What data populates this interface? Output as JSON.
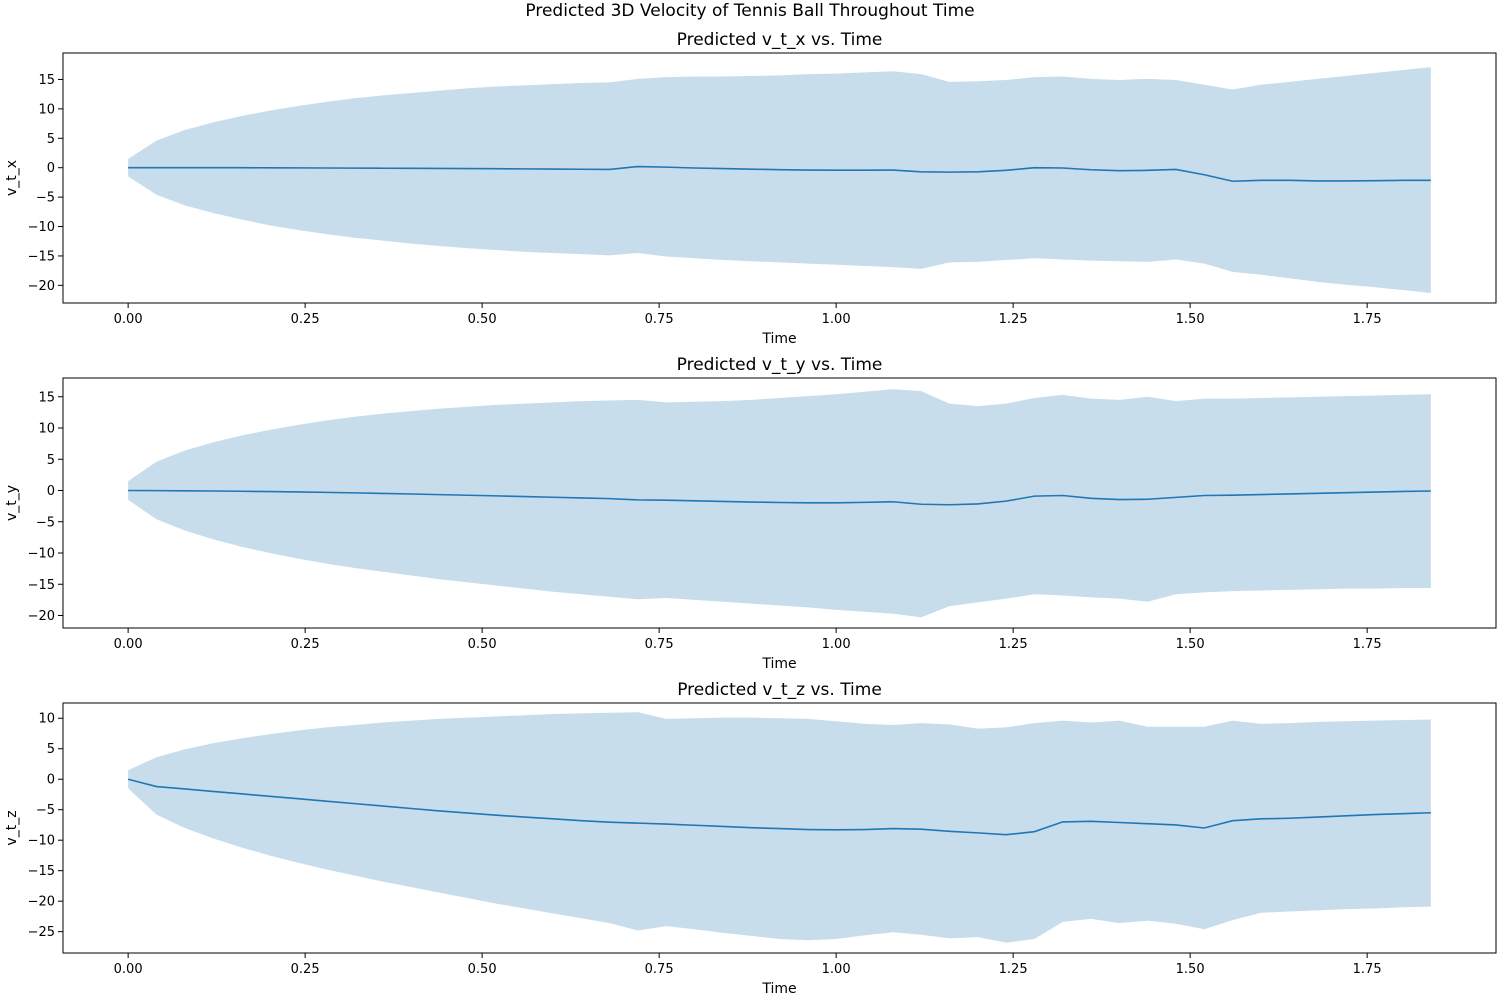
{
  "figure": {
    "suptitle": "Predicted 3D Velocity of Tennis Ball Throughout Time"
  },
  "colors": {
    "line": "#1f77b4",
    "band": "#1f77b4",
    "band_opacity": 0.25
  },
  "chart_data": [
    {
      "type": "area",
      "title": "Predicted v_t_x vs. Time",
      "xlabel": "Time",
      "ylabel": "v_t_x",
      "xlim": [
        -0.092,
        1.932
      ],
      "ylim": [
        -23.0,
        19.5
      ],
      "xticks": [
        0.0,
        0.25,
        0.5,
        0.75,
        1.0,
        1.25,
        1.5,
        1.75
      ],
      "xtick_labels": [
        "0.00",
        "0.25",
        "0.50",
        "0.75",
        "1.00",
        "1.25",
        "1.50",
        "1.75"
      ],
      "yticks": [
        15,
        10,
        5,
        0,
        -5,
        -10,
        -15,
        -20
      ],
      "ytick_labels": [
        "15",
        "10",
        "5",
        "0",
        "−5",
        "−10",
        "−15",
        "−20"
      ],
      "series": [
        {
          "x": [
            0.0,
            0.04,
            0.08,
            0.12,
            0.16,
            0.2,
            0.24,
            0.28,
            0.32,
            0.36,
            0.4,
            0.44,
            0.48,
            0.52,
            0.56,
            0.6,
            0.64,
            0.68,
            0.72,
            0.76,
            0.8,
            0.84,
            0.88,
            0.92,
            0.96,
            1.0,
            1.04,
            1.08,
            1.12,
            1.16,
            1.2,
            1.24,
            1.28,
            1.32,
            1.36,
            1.4,
            1.44,
            1.48,
            1.52,
            1.56,
            1.6,
            1.64,
            1.68,
            1.72,
            1.76,
            1.8,
            1.84
          ],
          "y": [
            0.0,
            0.0,
            0.0,
            0.0,
            0.0,
            -0.02,
            -0.03,
            -0.05,
            -0.07,
            -0.09,
            -0.11,
            -0.13,
            -0.15,
            -0.17,
            -0.2,
            -0.23,
            -0.26,
            -0.3,
            0.2,
            0.1,
            -0.05,
            -0.15,
            -0.25,
            -0.33,
            -0.4,
            -0.42,
            -0.42,
            -0.4,
            -0.7,
            -0.75,
            -0.7,
            -0.45,
            0.0,
            -0.05,
            -0.35,
            -0.5,
            -0.45,
            -0.3,
            -1.2,
            -2.3,
            -2.15,
            -2.15,
            -2.25,
            -2.25,
            -2.2,
            -2.15,
            -2.15
          ],
          "lower": [
            -1.5,
            -4.6,
            -6.4,
            -7.7,
            -8.8,
            -9.8,
            -10.6,
            -11.3,
            -11.9,
            -12.4,
            -12.9,
            -13.3,
            -13.7,
            -14.0,
            -14.3,
            -14.5,
            -14.7,
            -14.9,
            -14.5,
            -15.1,
            -15.4,
            -15.7,
            -15.9,
            -16.1,
            -16.3,
            -16.5,
            -16.7,
            -16.9,
            -17.2,
            -16.1,
            -16.0,
            -15.7,
            -15.4,
            -15.6,
            -15.8,
            -15.9,
            -16.0,
            -15.6,
            -16.3,
            -17.7,
            -18.2,
            -18.8,
            -19.4,
            -19.9,
            -20.3,
            -20.8,
            -21.3
          ],
          "upper": [
            1.5,
            4.6,
            6.4,
            7.7,
            8.8,
            9.7,
            10.5,
            11.2,
            11.8,
            12.3,
            12.7,
            13.1,
            13.5,
            13.8,
            14.0,
            14.2,
            14.4,
            14.5,
            15.1,
            15.4,
            15.5,
            15.5,
            15.6,
            15.7,
            15.9,
            16.0,
            16.2,
            16.4,
            15.9,
            14.6,
            14.7,
            14.9,
            15.4,
            15.5,
            15.1,
            14.9,
            15.1,
            14.9,
            14.1,
            13.3,
            14.1,
            14.6,
            15.1,
            15.6,
            16.1,
            16.6,
            17.1
          ]
        }
      ]
    },
    {
      "type": "area",
      "title": "Predicted v_t_y vs. Time",
      "xlabel": "Time",
      "ylabel": "v_t_y",
      "xlim": [
        -0.092,
        1.932
      ],
      "ylim": [
        -22.0,
        18.0
      ],
      "xticks": [
        0.0,
        0.25,
        0.5,
        0.75,
        1.0,
        1.25,
        1.5,
        1.75
      ],
      "xtick_labels": [
        "0.00",
        "0.25",
        "0.50",
        "0.75",
        "1.00",
        "1.25",
        "1.50",
        "1.75"
      ],
      "yticks": [
        15,
        10,
        5,
        0,
        -5,
        -10,
        -15,
        -20
      ],
      "ytick_labels": [
        "15",
        "10",
        "5",
        "0",
        "−5",
        "−10",
        "−15",
        "−20"
      ],
      "series": [
        {
          "x": [
            0.0,
            0.04,
            0.08,
            0.12,
            0.16,
            0.2,
            0.24,
            0.28,
            0.32,
            0.36,
            0.4,
            0.44,
            0.48,
            0.52,
            0.56,
            0.6,
            0.64,
            0.68,
            0.72,
            0.76,
            0.8,
            0.84,
            0.88,
            0.92,
            0.96,
            1.0,
            1.04,
            1.08,
            1.12,
            1.16,
            1.2,
            1.24,
            1.28,
            1.32,
            1.36,
            1.4,
            1.44,
            1.48,
            1.52,
            1.56,
            1.6,
            1.64,
            1.68,
            1.72,
            1.76,
            1.8,
            1.84
          ],
          "y": [
            0.0,
            -0.02,
            -0.05,
            -0.08,
            -0.12,
            -0.17,
            -0.23,
            -0.3,
            -0.38,
            -0.47,
            -0.56,
            -0.66,
            -0.76,
            -0.86,
            -0.97,
            -1.08,
            -1.19,
            -1.3,
            -1.5,
            -1.55,
            -1.65,
            -1.75,
            -1.85,
            -1.92,
            -1.97,
            -1.97,
            -1.9,
            -1.8,
            -2.2,
            -2.28,
            -2.15,
            -1.7,
            -0.9,
            -0.8,
            -1.25,
            -1.45,
            -1.4,
            -1.1,
            -0.8,
            -0.75,
            -0.65,
            -0.55,
            -0.45,
            -0.35,
            -0.25,
            -0.15,
            -0.08
          ],
          "lower": [
            -1.5,
            -4.6,
            -6.4,
            -7.8,
            -9.0,
            -10.0,
            -10.9,
            -11.7,
            -12.4,
            -13.0,
            -13.6,
            -14.2,
            -14.7,
            -15.2,
            -15.7,
            -16.2,
            -16.6,
            -17.0,
            -17.4,
            -17.2,
            -17.5,
            -17.8,
            -18.1,
            -18.4,
            -18.7,
            -19.1,
            -19.4,
            -19.7,
            -20.3,
            -18.5,
            -17.9,
            -17.3,
            -16.6,
            -16.8,
            -17.1,
            -17.3,
            -17.8,
            -16.6,
            -16.3,
            -16.1,
            -16.0,
            -15.9,
            -15.8,
            -15.7,
            -15.7,
            -15.6,
            -15.6
          ],
          "upper": [
            1.5,
            4.6,
            6.4,
            7.7,
            8.8,
            9.7,
            10.5,
            11.2,
            11.8,
            12.3,
            12.7,
            13.1,
            13.4,
            13.7,
            13.9,
            14.1,
            14.3,
            14.4,
            14.5,
            14.1,
            14.2,
            14.3,
            14.5,
            14.8,
            15.1,
            15.4,
            15.8,
            16.2,
            15.9,
            13.9,
            13.5,
            13.9,
            14.8,
            15.3,
            14.7,
            14.5,
            15.0,
            14.3,
            14.7,
            14.7,
            14.8,
            14.9,
            15.0,
            15.1,
            15.2,
            15.3,
            15.4
          ]
        }
      ]
    },
    {
      "type": "area",
      "title": "Predicted v_t_z vs. Time",
      "xlabel": "Time",
      "ylabel": "v_t_z",
      "xlim": [
        -0.092,
        1.932
      ],
      "ylim": [
        -28.5,
        12.5
      ],
      "xticks": [
        0.0,
        0.25,
        0.5,
        0.75,
        1.0,
        1.25,
        1.5,
        1.75
      ],
      "xtick_labels": [
        "0.00",
        "0.25",
        "0.50",
        "0.75",
        "1.00",
        "1.25",
        "1.50",
        "1.75"
      ],
      "yticks": [
        10,
        5,
        0,
        -5,
        -10,
        -15,
        -20,
        -25
      ],
      "ytick_labels": [
        "10",
        "5",
        "0",
        "−5",
        "−10",
        "−15",
        "−20",
        "−25"
      ],
      "series": [
        {
          "x": [
            0.0,
            0.04,
            0.08,
            0.12,
            0.16,
            0.2,
            0.24,
            0.28,
            0.32,
            0.36,
            0.4,
            0.44,
            0.48,
            0.52,
            0.56,
            0.6,
            0.64,
            0.68,
            0.72,
            0.76,
            0.8,
            0.84,
            0.88,
            0.92,
            0.96,
            1.0,
            1.04,
            1.08,
            1.12,
            1.16,
            1.2,
            1.24,
            1.28,
            1.32,
            1.36,
            1.4,
            1.44,
            1.48,
            1.52,
            1.56,
            1.6,
            1.64,
            1.68,
            1.72,
            1.76,
            1.8,
            1.84
          ],
          "y": [
            0.0,
            -1.2,
            -1.6,
            -2.0,
            -2.4,
            -2.8,
            -3.2,
            -3.6,
            -4.0,
            -4.4,
            -4.8,
            -5.2,
            -5.55,
            -5.9,
            -6.2,
            -6.5,
            -6.8,
            -7.05,
            -7.2,
            -7.35,
            -7.55,
            -7.75,
            -7.95,
            -8.1,
            -8.25,
            -8.3,
            -8.25,
            -8.1,
            -8.2,
            -8.55,
            -8.8,
            -9.1,
            -8.6,
            -7.0,
            -6.9,
            -7.1,
            -7.3,
            -7.5,
            -8.0,
            -6.8,
            -6.5,
            -6.4,
            -6.2,
            -6.0,
            -5.8,
            -5.65,
            -5.5
          ],
          "lower": [
            -1.5,
            -5.8,
            -8.0,
            -9.7,
            -11.2,
            -12.5,
            -13.7,
            -14.8,
            -15.8,
            -16.8,
            -17.7,
            -18.6,
            -19.5,
            -20.4,
            -21.2,
            -22.0,
            -22.8,
            -23.6,
            -24.8,
            -24.1,
            -24.6,
            -25.2,
            -25.7,
            -26.2,
            -26.4,
            -26.2,
            -25.6,
            -25.1,
            -25.5,
            -26.1,
            -25.9,
            -26.8,
            -26.2,
            -23.4,
            -22.9,
            -23.6,
            -23.2,
            -23.7,
            -24.6,
            -23.1,
            -21.9,
            -21.7,
            -21.5,
            -21.3,
            -21.2,
            -21.0,
            -20.9
          ],
          "upper": [
            1.5,
            3.6,
            4.9,
            5.9,
            6.7,
            7.4,
            8.0,
            8.5,
            8.9,
            9.3,
            9.6,
            9.9,
            10.1,
            10.3,
            10.5,
            10.7,
            10.8,
            10.9,
            11.0,
            9.9,
            10.0,
            10.1,
            10.1,
            10.0,
            9.9,
            9.5,
            9.1,
            8.9,
            9.2,
            9.0,
            8.3,
            8.5,
            9.2,
            9.6,
            9.3,
            9.6,
            8.6,
            8.6,
            8.6,
            9.6,
            9.1,
            9.2,
            9.4,
            9.5,
            9.6,
            9.7,
            9.8
          ]
        }
      ]
    }
  ]
}
